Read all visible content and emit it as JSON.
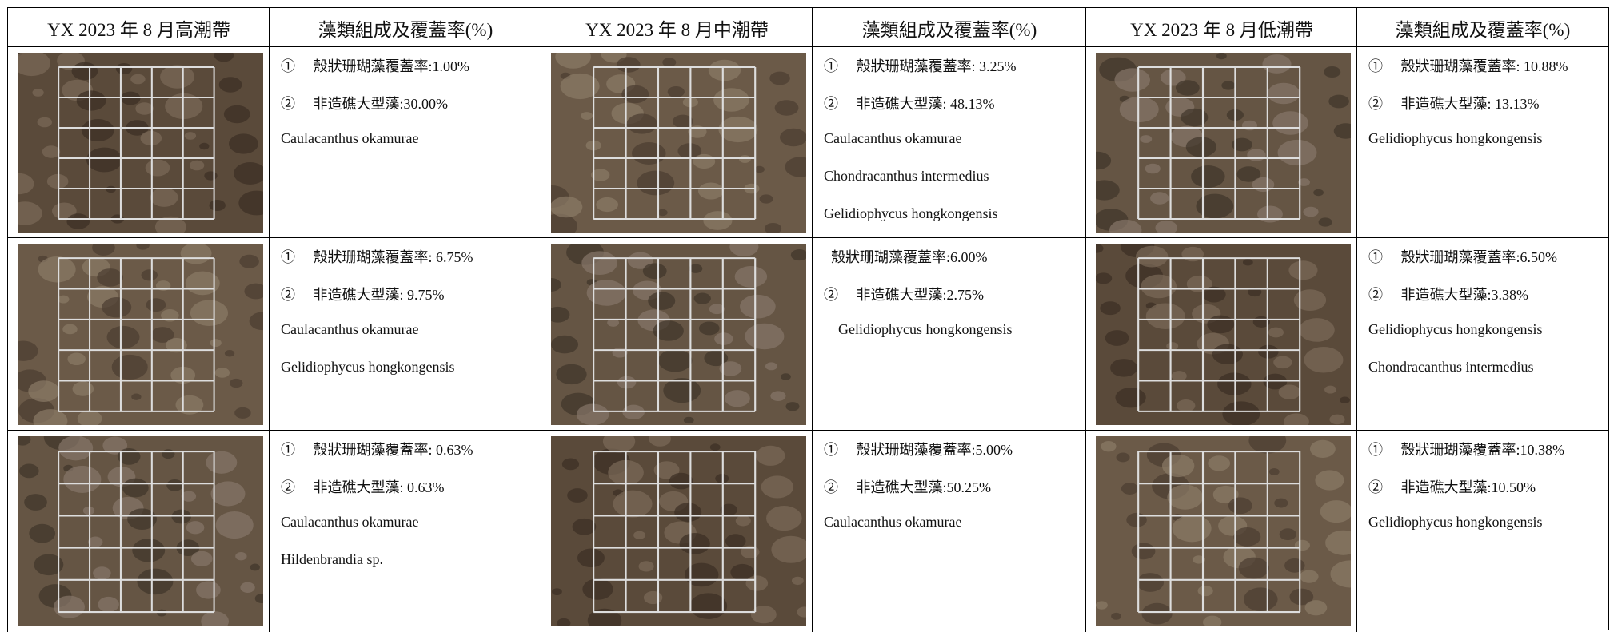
{
  "table": {
    "header": [
      "YX 2023 年 8 月高潮帶",
      "藻類組成及覆蓋率(%)",
      "YX 2023 年 8 月中潮帶",
      "藻類組成及覆蓋率(%)",
      "YX 2023 年 8 月低潮帶",
      "藻類組成及覆蓋率(%)"
    ],
    "rows": [
      [
        [
          "①　 殼狀珊瑚藻覆蓋率:1.00%",
          "②　 非造礁大型藻:30.00%",
          "Caulacanthus okamurae"
        ],
        [
          "①　 殼狀珊瑚藻覆蓋率: 3.25%",
          "②　 非造礁大型藻: 48.13%",
          "Caulacanthus okamurae",
          "Chondracanthus intermedius",
          "Gelidiophycus hongkongensis"
        ],
        [
          "①　 殼狀珊瑚藻覆蓋率: 10.88%",
          "②　 非造礁大型藻: 13.13%",
          "Gelidiophycus hongkongensis"
        ]
      ],
      [
        [
          "①　 殼狀珊瑚藻覆蓋率: 6.75%",
          "②　 非造礁大型藻: 9.75%",
          "Caulacanthus okamurae",
          "Gelidiophycus hongkongensis"
        ],
        [
          "  殼狀珊瑚藻覆蓋率:6.00%",
          "②　 非造礁大型藻:2.75%",
          "    Gelidiophycus hongkongensis"
        ],
        [
          "①　 殼狀珊瑚藻覆蓋率:6.50%",
          "②　 非造礁大型藻:3.38%",
          "Gelidiophycus hongkongensis",
          "Chondracanthus intermedius"
        ]
      ],
      [
        [
          "①　 殼狀珊瑚藻覆蓋率: 0.63%",
          "②　 非造礁大型藻: 0.63%",
          "Caulacanthus okamurae",
          "Hildenbrandia sp."
        ],
        [
          "①　 殼狀珊瑚藻覆蓋率:5.00%",
          "②　 非造礁大型藻:50.25%",
          "Caulacanthus okamurae"
        ],
        [
          "①　 殼狀珊瑚藻覆蓋率:10.38%",
          "②　 非造礁大型藻:10.50%",
          "Gelidiophycus hongkongensis"
        ]
      ]
    ]
  }
}
